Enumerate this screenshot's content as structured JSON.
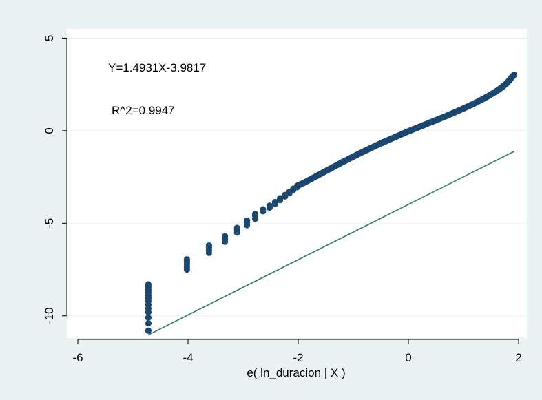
{
  "chart_data": {
    "type": "scatter",
    "title": "",
    "xlabel": "e( ln_duracion | X )",
    "ylabel": "",
    "xlim": [
      -6.2,
      2.15
    ],
    "ylim": [
      -11.2,
      5.5
    ],
    "x_ticks": [
      -6,
      -4,
      -2,
      0,
      2
    ],
    "y_ticks": [
      5,
      0,
      -5,
      -10
    ],
    "x_tick_labels": [
      "-6",
      "-4",
      "-2",
      "0",
      "2"
    ],
    "y_tick_labels": [
      "5",
      "0",
      "-5",
      "-10"
    ],
    "grid": true,
    "legend": "none",
    "colors": {
      "outer_background": "#eaf2f3",
      "plot_background": "#ffffff",
      "grid": "#eaf2f3",
      "points": "#1a476f",
      "fit_line": "#2e7a64"
    },
    "annotations": [
      {
        "text": "Y=1.4931X-3.9817"
      },
      {
        "text": "R^2=0.9947"
      }
    ],
    "fit_line": {
      "slope": 1.4931,
      "intercept": -3.9817,
      "x_range": [
        -4.72,
        1.92
      ]
    },
    "series": [
      {
        "points": [
          [
            -4.72,
            -10.8
          ],
          [
            -4.72,
            -10.4
          ],
          [
            -4.72,
            -10.1
          ],
          [
            -4.72,
            -9.8
          ],
          [
            -4.72,
            -9.6
          ],
          [
            -4.72,
            -9.4
          ],
          [
            -4.72,
            -9.2
          ],
          [
            -4.72,
            -9.05
          ],
          [
            -4.72,
            -8.9
          ],
          [
            -4.72,
            -8.75
          ],
          [
            -4.72,
            -8.6
          ],
          [
            -4.72,
            -8.45
          ],
          [
            -4.72,
            -8.3
          ],
          [
            -4.02,
            -7.5
          ],
          [
            -4.02,
            -7.35
          ],
          [
            -4.02,
            -7.2
          ],
          [
            -4.02,
            -7.05
          ],
          [
            -4.02,
            -6.95
          ],
          [
            -3.62,
            -6.6
          ],
          [
            -3.62,
            -6.45
          ],
          [
            -3.62,
            -6.3
          ],
          [
            -3.62,
            -6.2
          ],
          [
            -3.33,
            -6.0
          ],
          [
            -3.33,
            -5.85
          ],
          [
            -3.33,
            -5.7
          ],
          [
            -3.11,
            -5.5
          ],
          [
            -3.11,
            -5.35
          ],
          [
            -3.11,
            -5.25
          ],
          [
            -2.93,
            -5.1
          ],
          [
            -2.93,
            -4.95
          ],
          [
            -2.93,
            -4.85
          ],
          [
            -2.78,
            -4.75
          ],
          [
            -2.78,
            -4.6
          ],
          [
            -2.78,
            -4.5
          ],
          [
            -2.64,
            -4.35
          ],
          [
            -2.64,
            -4.25
          ],
          [
            -2.52,
            -4.15
          ],
          [
            -2.52,
            -4.05
          ],
          [
            -2.42,
            -3.95
          ],
          [
            -2.42,
            -3.85
          ],
          [
            -2.33,
            -3.75
          ],
          [
            -2.33,
            -3.65
          ],
          [
            -2.24,
            -3.55
          ],
          [
            -2.24,
            -3.47
          ],
          [
            -2.16,
            -3.38
          ],
          [
            -2.16,
            -3.3
          ],
          [
            -2.09,
            -3.2
          ],
          [
            -2.09,
            -3.13
          ],
          [
            -2.02,
            -3.05
          ],
          [
            -2.02,
            -2.98
          ],
          [
            -1.9,
            -2.82
          ],
          [
            -1.8,
            -2.66
          ],
          [
            -1.7,
            -2.5
          ],
          [
            -1.6,
            -2.34
          ],
          [
            -1.5,
            -2.18
          ],
          [
            -1.4,
            -2.02
          ],
          [
            -1.3,
            -1.86
          ],
          [
            -1.2,
            -1.7
          ],
          [
            -1.1,
            -1.55
          ],
          [
            -1.0,
            -1.4
          ],
          [
            -0.9,
            -1.25
          ],
          [
            -0.8,
            -1.1
          ],
          [
            -0.7,
            -0.96
          ],
          [
            -0.6,
            -0.82
          ],
          [
            -0.5,
            -0.68
          ],
          [
            -0.4,
            -0.55
          ],
          [
            -0.3,
            -0.42
          ],
          [
            -0.2,
            -0.29
          ],
          [
            -0.1,
            -0.16
          ],
          [
            0.0,
            -0.03
          ],
          [
            0.1,
            0.09
          ],
          [
            0.2,
            0.21
          ],
          [
            0.3,
            0.33
          ],
          [
            0.4,
            0.45
          ],
          [
            0.5,
            0.57
          ],
          [
            0.6,
            0.69
          ],
          [
            0.7,
            0.81
          ],
          [
            0.8,
            0.94
          ],
          [
            0.9,
            1.07
          ],
          [
            1.0,
            1.2
          ],
          [
            1.1,
            1.34
          ],
          [
            1.2,
            1.48
          ],
          [
            1.3,
            1.63
          ],
          [
            1.4,
            1.79
          ],
          [
            1.5,
            1.96
          ],
          [
            1.6,
            2.14
          ],
          [
            1.7,
            2.35
          ],
          [
            1.78,
            2.55
          ],
          [
            1.84,
            2.75
          ],
          [
            1.88,
            2.9
          ],
          [
            1.92,
            3.02
          ]
        ],
        "dense_segment": {
          "x_from": -2.02,
          "x_to": 1.9
        }
      }
    ]
  }
}
